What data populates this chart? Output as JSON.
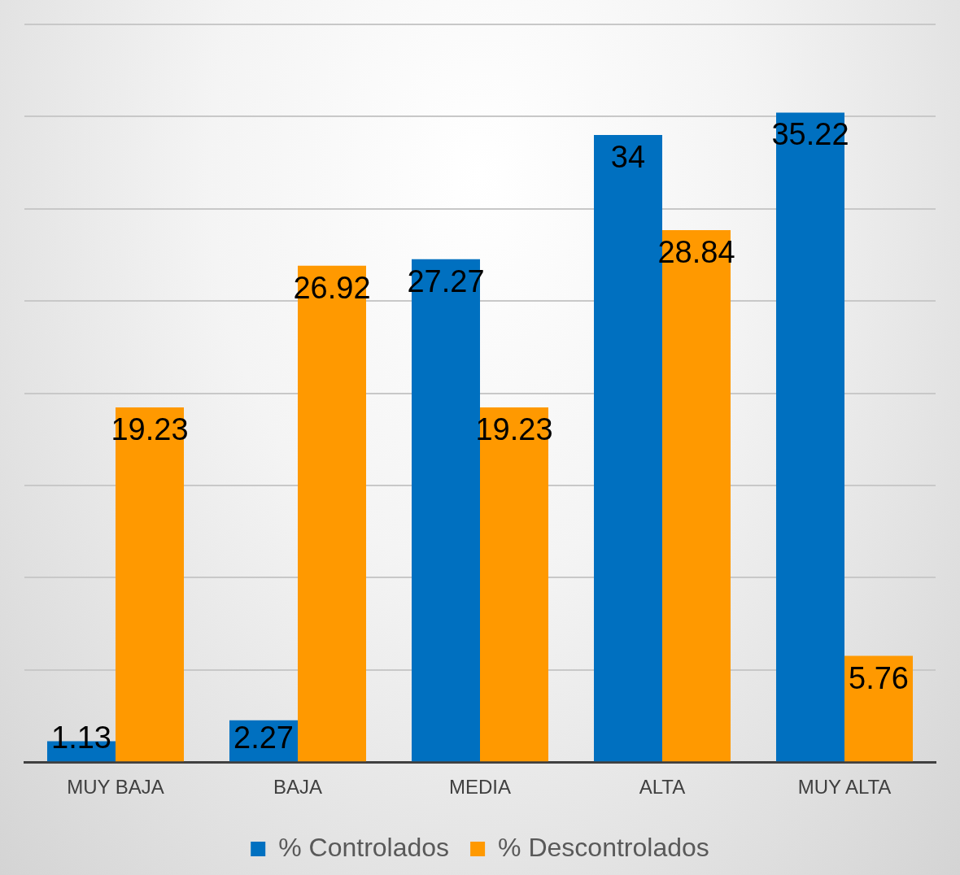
{
  "chart_data": {
    "type": "bar",
    "categories": [
      "MUY BAJA",
      "BAJA",
      "MEDIA",
      "ALTA",
      "MUY ALTA"
    ],
    "series": [
      {
        "name": "% Controlados",
        "color": "#0070c0",
        "values": [
          1.13,
          2.27,
          27.27,
          34,
          35.22
        ]
      },
      {
        "name": "% Descontrolados",
        "color": "#ff9900",
        "values": [
          19.23,
          26.92,
          19.23,
          28.84,
          5.76
        ]
      }
    ],
    "ylim": [
      0,
      40
    ],
    "yticks": [
      {
        "value": 0,
        "label": null
      },
      {
        "value": 5,
        "label": null
      },
      {
        "value": 10,
        "label": null
      },
      {
        "value": 15,
        "label": null
      },
      {
        "value": 20,
        "label": null
      },
      {
        "value": 25,
        "label": null
      },
      {
        "value": 30,
        "label": null
      },
      {
        "value": 35,
        "label": null
      },
      {
        "value": 40,
        "label": null
      }
    ],
    "tick_labels": "x",
    "grid": "y",
    "data_labels": true,
    "legend": "bottom"
  }
}
